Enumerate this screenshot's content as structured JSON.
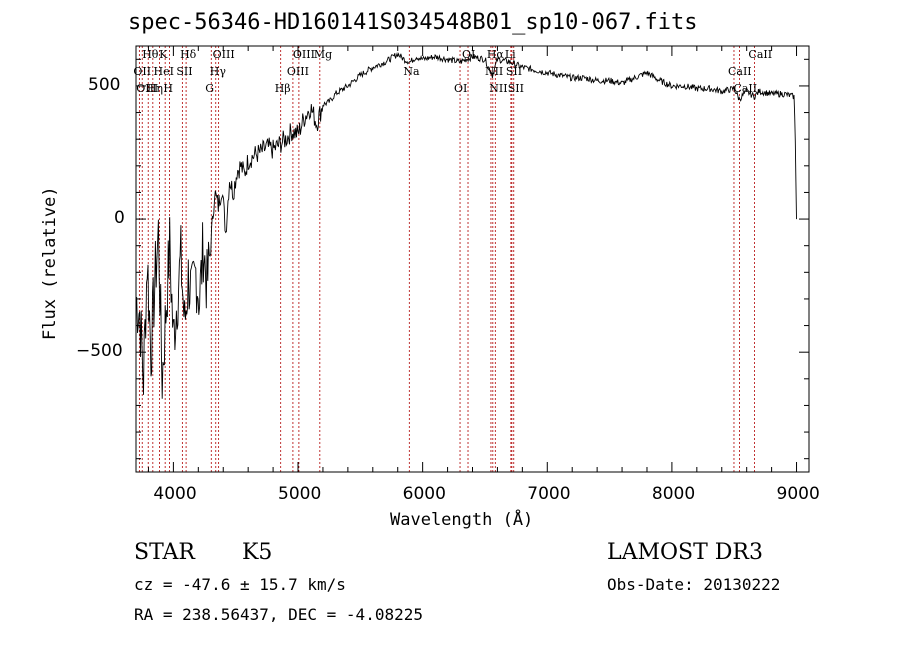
{
  "chart_data": {
    "type": "line",
    "title": "spec-56346-HD160141S034548B01_sp10-067.fits",
    "xlabel": "Wavelength (Å)",
    "ylabel": "Flux (relative)",
    "xlim": [
      3700,
      9100
    ],
    "ylim": [
      -950,
      650
    ],
    "xticks": [
      4000,
      5000,
      6000,
      7000,
      8000,
      9000
    ],
    "yticks": [
      -500,
      0,
      500
    ],
    "series": [
      {
        "name": "flux",
        "x": [
          3700,
          3730,
          3760,
          3790,
          3820,
          3850,
          3880,
          3910,
          3940,
          3970,
          4000,
          4030,
          4060,
          4090,
          4120,
          4150,
          4180,
          4210,
          4240,
          4270,
          4300,
          4330,
          4360,
          4390,
          4420,
          4450,
          4480,
          4510,
          4540,
          4570,
          4600,
          4650,
          4700,
          4750,
          4800,
          4850,
          4900,
          4950,
          5000,
          5050,
          5100,
          5150,
          5200,
          5250,
          5300,
          5400,
          5500,
          5600,
          5700,
          5800,
          5850,
          5900,
          5950,
          6000,
          6100,
          6200,
          6300,
          6400,
          6500,
          6560,
          6600,
          6700,
          6800,
          6900,
          7000,
          7100,
          7200,
          7300,
          7400,
          7500,
          7600,
          7700,
          7800,
          7900,
          8000,
          8100,
          8200,
          8300,
          8400,
          8500,
          8540,
          8600,
          8660,
          8700,
          8800,
          8900,
          8980,
          8990,
          9000
        ],
        "y": [
          -300,
          -350,
          -600,
          -150,
          -500,
          -250,
          -50,
          -600,
          -350,
          -100,
          -450,
          -300,
          -150,
          -400,
          -220,
          -300,
          -200,
          -300,
          -100,
          -250,
          -100,
          100,
          50,
          120,
          -50,
          150,
          100,
          180,
          200,
          170,
          220,
          240,
          250,
          270,
          260,
          280,
          300,
          330,
          320,
          380,
          420,
          360,
          430,
          440,
          470,
          500,
          540,
          570,
          590,
          620,
          600,
          590,
          610,
          600,
          610,
          600,
          590,
          610,
          600,
          540,
          600,
          590,
          570,
          560,
          550,
          540,
          530,
          530,
          520,
          520,
          510,
          530,
          550,
          520,
          500,
          500,
          490,
          490,
          480,
          490,
          450,
          480,
          460,
          480,
          470,
          470,
          460,
          300,
          0
        ]
      }
    ],
    "lines": [
      {
        "label": "Hθ",
        "x": 3798
      },
      {
        "label": "OII",
        "x": 3727
      },
      {
        "label": "OIII",
        "x": 3750
      },
      {
        "label": "K",
        "x": 3934
      },
      {
        "label": "HeI",
        "x": 3889
      },
      {
        "label": "Hη",
        "x": 3835
      },
      {
        "label": "Hδ",
        "x": 4102
      },
      {
        "label": "SII",
        "x": 4072
      },
      {
        "label": "H",
        "x": 3968
      },
      {
        "label": "OIII",
        "x": 4363
      },
      {
        "label": "Hγ",
        "x": 4340
      },
      {
        "label": "G",
        "x": 4304
      },
      {
        "label": "OIII",
        "x": 5007
      },
      {
        "label": "OIII",
        "x": 4959
      },
      {
        "label": "Hβ",
        "x": 4861
      },
      {
        "label": "Mg",
        "x": 5175
      },
      {
        "label": "Na",
        "x": 5893
      },
      {
        "label": "OI",
        "x": 6300
      },
      {
        "label": "OI",
        "x": 6364
      },
      {
        "label": "NII",
        "x": 6548
      },
      {
        "label": "NII",
        "x": 6583
      },
      {
        "label": "Hα",
        "x": 6563
      },
      {
        "label": "SII",
        "x": 6716
      },
      {
        "label": "SII",
        "x": 6731
      },
      {
        "label": "Li",
        "x": 6708
      },
      {
        "label": "CaII",
        "x": 8498
      },
      {
        "label": "CaII",
        "x": 8542
      },
      {
        "label": "CaII",
        "x": 8662
      }
    ],
    "grid": false
  },
  "info": {
    "class": "STAR",
    "subclass": "K5",
    "survey": "LAMOST DR3",
    "cz": "cz = -47.6 ± 15.7 km/s",
    "obs_date": "Obs-Date: 20130222",
    "coords": "RA = 238.56437, DEC =  -4.08225"
  },
  "colors": {
    "line_marker": "#b00000",
    "spectrum": "#000000"
  }
}
